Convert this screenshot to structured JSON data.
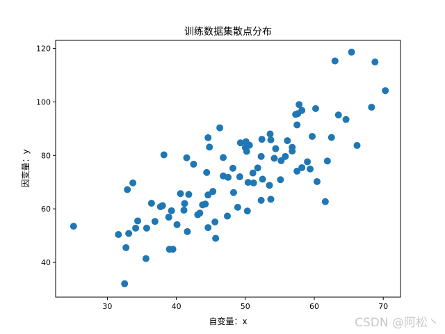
{
  "chart_data": {
    "type": "scatter",
    "title": "训练数据集散点分布",
    "xlabel": "自变量：x",
    "ylabel": "因变量：y",
    "xlim": [
      22.5,
      72.5
    ],
    "ylim": [
      27,
      123
    ],
    "xticks": [
      30,
      40,
      50,
      60,
      70
    ],
    "yticks": [
      40,
      60,
      80,
      100,
      120
    ],
    "grid": false,
    "marker_color": "#1f77b4",
    "series": [
      {
        "points": [
          [
            25.1,
            53.5
          ],
          [
            31.6,
            50.4
          ],
          [
            32.5,
            32.0
          ],
          [
            32.7,
            45.5
          ],
          [
            32.9,
            67.2
          ],
          [
            33.1,
            50.8
          ],
          [
            33.7,
            69.7
          ],
          [
            34.1,
            52.8
          ],
          [
            34.4,
            55.5
          ],
          [
            35.6,
            41.4
          ],
          [
            35.7,
            52.8
          ],
          [
            36.4,
            62.1
          ],
          [
            36.9,
            55.3
          ],
          [
            37.7,
            60.8
          ],
          [
            38.0,
            61.2
          ],
          [
            38.2,
            80.2
          ],
          [
            38.9,
            56.9
          ],
          [
            39.0,
            44.9
          ],
          [
            39.3,
            59.3
          ],
          [
            39.5,
            44.9
          ],
          [
            40.1,
            54.1
          ],
          [
            40.6,
            65.7
          ],
          [
            41.1,
            59.5
          ],
          [
            41.2,
            62.0
          ],
          [
            41.5,
            79.1
          ],
          [
            41.6,
            51.5
          ],
          [
            41.8,
            65.4
          ],
          [
            42.5,
            76.7
          ],
          [
            43.1,
            57.8
          ],
          [
            43.4,
            58.4
          ],
          [
            43.8,
            61.5
          ],
          [
            44.2,
            61.8
          ],
          [
            44.4,
            73.6
          ],
          [
            44.6,
            53.0
          ],
          [
            44.6,
            65.2
          ],
          [
            44.6,
            86.6
          ],
          [
            44.8,
            83.1
          ],
          [
            45.3,
            66.5
          ],
          [
            45.6,
            55.1
          ],
          [
            45.7,
            49.0
          ],
          [
            46.3,
            90.3
          ],
          [
            46.8,
            72.3
          ],
          [
            46.8,
            79.2
          ],
          [
            47.4,
            57.3
          ],
          [
            47.5,
            71.8
          ],
          [
            48.2,
            75.2
          ],
          [
            48.3,
            66.1
          ],
          [
            48.9,
            60.6
          ],
          [
            49.2,
            72.0
          ],
          [
            49.3,
            84.7
          ],
          [
            50.0,
            82.9
          ],
          [
            50.1,
            85.1
          ],
          [
            50.2,
            81.5
          ],
          [
            50.3,
            59.2
          ],
          [
            50.4,
            69.9
          ],
          [
            50.6,
            83.8
          ],
          [
            51.1,
            73.4
          ],
          [
            51.2,
            69.7
          ],
          [
            51.8,
            75.3
          ],
          [
            52.3,
            63.2
          ],
          [
            52.3,
            79.6
          ],
          [
            52.4,
            86.0
          ],
          [
            52.5,
            71.1
          ],
          [
            53.5,
            68.8
          ],
          [
            53.6,
            88.0
          ],
          [
            53.7,
            63.6
          ],
          [
            53.7,
            85.8
          ],
          [
            54.2,
            78.9
          ],
          [
            54.4,
            82.5
          ],
          [
            55.1,
            70.9
          ],
          [
            55.2,
            78.0
          ],
          [
            55.8,
            79.6
          ],
          [
            56.1,
            85.5
          ],
          [
            56.8,
            81.6
          ],
          [
            56.8,
            83.0
          ],
          [
            57.3,
            95.3
          ],
          [
            57.5,
            74.1
          ],
          [
            57.5,
            91.4
          ],
          [
            57.6,
            95.6
          ],
          [
            57.8,
            99.0
          ],
          [
            58.2,
            96.8
          ],
          [
            58.2,
            75.4
          ],
          [
            59.0,
            77.6
          ],
          [
            59.4,
            74.9
          ],
          [
            59.7,
            87.1
          ],
          [
            60.2,
            97.5
          ],
          [
            60.4,
            70.2
          ],
          [
            61.6,
            62.7
          ],
          [
            61.9,
            77.9
          ],
          [
            62.5,
            86.7
          ],
          [
            63.0,
            115.3
          ],
          [
            63.5,
            95.1
          ],
          [
            64.6,
            93.4
          ],
          [
            65.4,
            118.6
          ],
          [
            66.2,
            83.7
          ],
          [
            68.3,
            98.0
          ],
          [
            68.8,
            114.9
          ],
          [
            70.3,
            104.2
          ]
        ]
      }
    ]
  },
  "watermark": "CSDN @阿松丶"
}
